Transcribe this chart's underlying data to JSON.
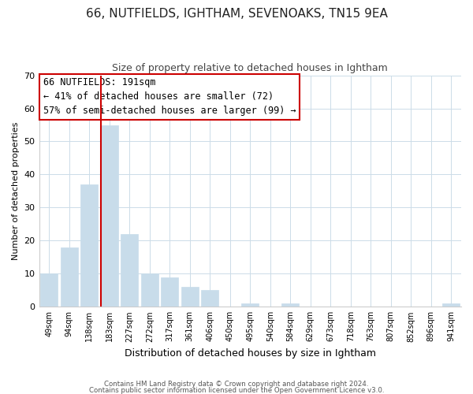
{
  "title": "66, NUTFIELDS, IGHTHAM, SEVENOAKS, TN15 9EA",
  "subtitle": "Size of property relative to detached houses in Ightham",
  "xlabel": "Distribution of detached houses by size in Ightham",
  "ylabel": "Number of detached properties",
  "footer_line1": "Contains HM Land Registry data © Crown copyright and database right 2024.",
  "footer_line2": "Contains public sector information licensed under the Open Government Licence v3.0.",
  "bar_labels": [
    "49sqm",
    "94sqm",
    "138sqm",
    "183sqm",
    "227sqm",
    "272sqm",
    "317sqm",
    "361sqm",
    "406sqm",
    "450sqm",
    "495sqm",
    "540sqm",
    "584sqm",
    "629sqm",
    "673sqm",
    "718sqm",
    "763sqm",
    "807sqm",
    "852sqm",
    "896sqm",
    "941sqm"
  ],
  "bar_values": [
    10,
    18,
    37,
    55,
    22,
    10,
    9,
    6,
    5,
    0,
    1,
    0,
    1,
    0,
    0,
    0,
    0,
    0,
    0,
    0,
    1
  ],
  "bar_color": "#c8dcea",
  "bar_edge_color": "#c8dcea",
  "vline_color": "#cc0000",
  "vline_x_index": 3,
  "annotation_line1": "66 NUTFIELDS: 191sqm",
  "annotation_line2": "← 41% of detached houses are smaller (72)",
  "annotation_line3": "57% of semi-detached houses are larger (99) →",
  "box_edge_color": "#cc0000",
  "ylim": [
    0,
    70
  ],
  "yticks": [
    0,
    10,
    20,
    30,
    40,
    50,
    60,
    70
  ],
  "background_color": "#ffffff",
  "grid_color": "#ccdce8",
  "title_fontsize": 11,
  "subtitle_fontsize": 9
}
